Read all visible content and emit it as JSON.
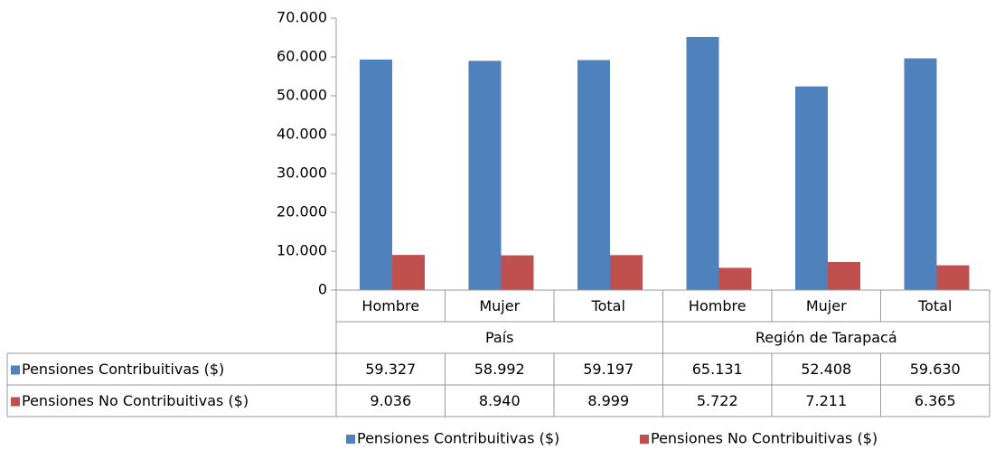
{
  "chart_data": {
    "type": "bar",
    "categories": [
      "Hombre",
      "Mujer",
      "Total",
      "Hombre",
      "Mujer",
      "Total"
    ],
    "groups": [
      "País",
      "Región de Tarapacá"
    ],
    "series": [
      {
        "name": "Pensiones Contribuitivas ($)",
        "color": "#4f81bd",
        "values": [
          59327,
          58992,
          59197,
          65131,
          52408,
          59630
        ],
        "value_labels": [
          "59.327",
          "58.992",
          "59.197",
          "65.131",
          "52.408",
          "59.630"
        ]
      },
      {
        "name": "Pensiones No Contribuitivas ($)",
        "color": "#c0504d",
        "values": [
          9036,
          8940,
          8999,
          5722,
          7211,
          6365
        ],
        "value_labels": [
          "9.036",
          "8.940",
          "8.999",
          "5.722",
          "7.211",
          "6.365"
        ]
      }
    ],
    "ylim": [
      0,
      70000
    ],
    "yticks": [
      0,
      {
        "value": 10000,
        "label": "10.000"
      },
      {
        "value": 20000,
        "label": "20.000"
      },
      {
        "value": 30000,
        "label": "30.000"
      },
      {
        "value": 40000,
        "label": "40.000"
      },
      {
        "value": 50000,
        "label": "50.000"
      },
      {
        "value": 60000,
        "label": "60.000"
      },
      {
        "value": 70000,
        "label": "70.000"
      }
    ],
    "legend": "bottom"
  }
}
